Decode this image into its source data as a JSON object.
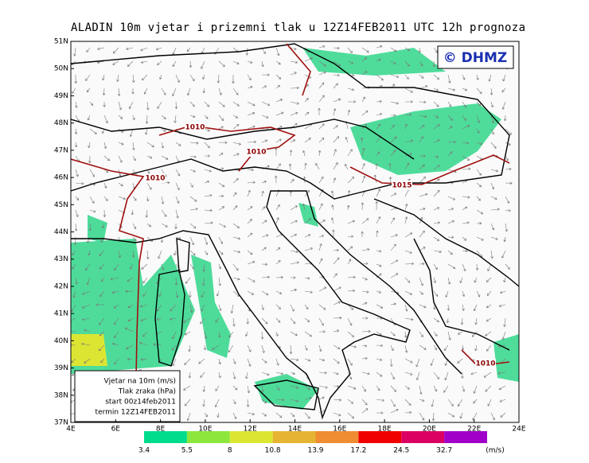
{
  "title": "ALADIN  10m  vjetar  i  prizemni  tlak  u  12Z14FEB2011  UTC  12h  prognoza",
  "logo": "© DHMZ",
  "lat_labels": [
    "51N",
    "50N",
    "49N",
    "48N",
    "47N",
    "46N",
    "45N",
    "44N",
    "43N",
    "42N",
    "41N",
    "40N",
    "39N",
    "38N",
    "37N"
  ],
  "lon_labels": [
    "4E",
    "6E",
    "8E",
    "10E",
    "12E",
    "14E",
    "16E",
    "18E",
    "20E",
    "22E",
    "24E"
  ],
  "legend_box": [
    "Vjetar na 10m (m/s)",
    "Tlak zraka (hPa)",
    "start 00z14feb2011",
    "termin 12Z14FEB2011"
  ],
  "isobar_labels": [
    "1010",
    "1010",
    "1010",
    "1015",
    "1010"
  ],
  "colorbar": {
    "labels": [
      "3.4",
      "5.5",
      "8",
      "10.8",
      "13.9",
      "17.2",
      "24.5",
      "32.7"
    ],
    "unit": "(m/s)",
    "colors": [
      "#00dc8c",
      "#8ce63c",
      "#dce632",
      "#e6b432",
      "#f08c32",
      "#f00000",
      "#dc0064",
      "#a000c8"
    ]
  }
}
